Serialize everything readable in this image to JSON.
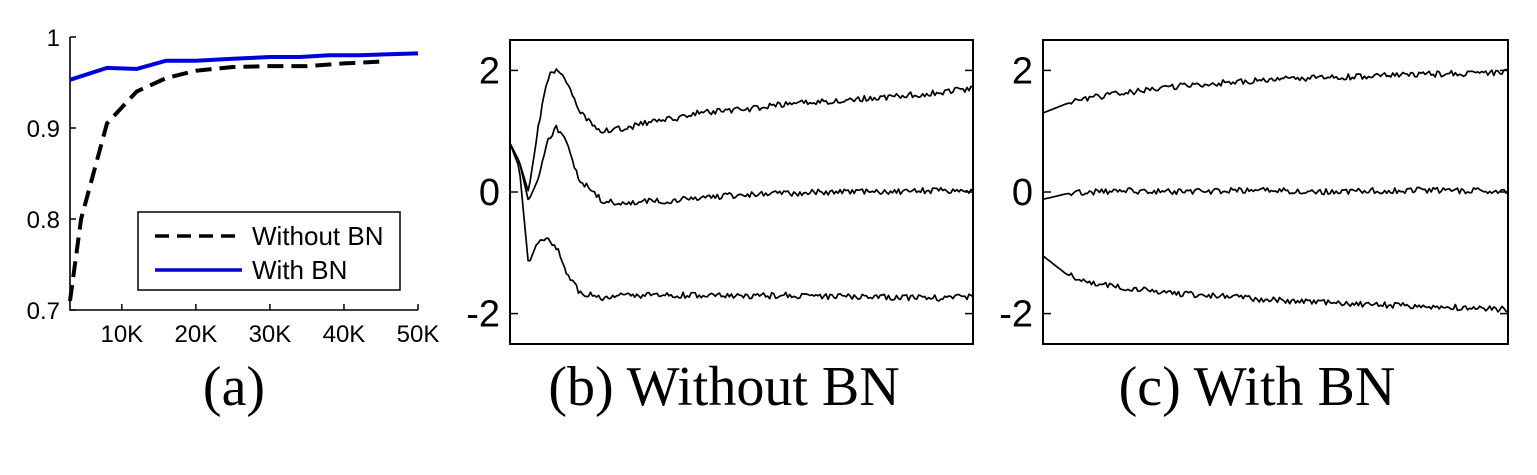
{
  "chart_data": [
    {
      "type": "line",
      "caption": "(a)",
      "xlim": [
        3000,
        50000
      ],
      "ylim": [
        0.7,
        1
      ],
      "x_ticks": [
        10000,
        20000,
        30000,
        40000,
        50000
      ],
      "x_tick_labels": [
        "10K",
        "20K",
        "30K",
        "40K",
        "50K"
      ],
      "y_ticks": [
        0.7,
        0.8,
        0.9,
        1
      ],
      "y_tick_labels": [
        "0.7",
        "0.8",
        "0.9",
        "1"
      ],
      "legend_position": "bottom-right",
      "series": [
        {
          "name": "Without BN",
          "color": "#000000",
          "style": "dashed",
          "x": [
            3000,
            4500,
            8000,
            12000,
            16000,
            20000,
            25000,
            30000,
            35000,
            40000,
            45000
          ],
          "y": [
            0.71,
            0.8,
            0.905,
            0.94,
            0.955,
            0.963,
            0.967,
            0.968,
            0.968,
            0.971,
            0.973
          ]
        },
        {
          "name": "With BN",
          "color": "#0000dd",
          "style": "solid",
          "x": [
            3000,
            8000,
            12000,
            16000,
            20000,
            25000,
            30000,
            34000,
            38000,
            42000,
            46000,
            50000
          ],
          "y": [
            0.953,
            0.966,
            0.965,
            0.974,
            0.974,
            0.976,
            0.978,
            0.978,
            0.98,
            0.98,
            0.981,
            0.982
          ]
        }
      ]
    },
    {
      "type": "line",
      "caption": "(b) Without BN",
      "ylim": [
        -2.5,
        2.5
      ],
      "y_ticks": [
        -2,
        0,
        2
      ],
      "y_tick_labels": [
        "-2",
        "0",
        "2"
      ],
      "x": [
        0,
        0.02,
        0.04,
        0.06,
        0.08,
        0.1,
        0.12,
        0.15,
        0.2,
        0.25,
        0.3,
        0.35,
        0.4,
        0.5,
        0.6,
        0.7,
        0.8,
        0.9,
        1.0
      ],
      "series": [
        {
          "name": "",
          "color": "#000000",
          "y": [
            0.8,
            0.5,
            0.0,
            1.0,
            1.85,
            2.05,
            1.85,
            1.3,
            1.0,
            1.05,
            1.15,
            1.2,
            1.3,
            1.35,
            1.45,
            1.5,
            1.55,
            1.62,
            1.7
          ]
        },
        {
          "name": "",
          "color": "#000000",
          "y": [
            0.8,
            0.5,
            -0.15,
            0.2,
            0.85,
            1.05,
            0.85,
            0.2,
            -0.15,
            -0.2,
            -0.15,
            -0.15,
            -0.1,
            -0.05,
            -0.02,
            0.0,
            0.0,
            0.02,
            0.02
          ]
        },
        {
          "name": "",
          "color": "#000000",
          "y": [
            0.8,
            0.4,
            -1.2,
            -0.8,
            -0.75,
            -0.9,
            -1.3,
            -1.65,
            -1.75,
            -1.7,
            -1.7,
            -1.7,
            -1.7,
            -1.72,
            -1.7,
            -1.72,
            -1.72,
            -1.75,
            -1.72
          ]
        }
      ]
    },
    {
      "type": "line",
      "caption": "(c) With BN",
      "ylim": [
        -2.5,
        2.5
      ],
      "y_ticks": [
        -2,
        0,
        2
      ],
      "y_tick_labels": [
        "-2",
        "0",
        "2"
      ],
      "x": [
        0,
        0.05,
        0.1,
        0.2,
        0.3,
        0.4,
        0.5,
        0.6,
        0.7,
        0.8,
        0.9,
        1.0
      ],
      "series": [
        {
          "name": "",
          "color": "#000000",
          "y": [
            1.3,
            1.45,
            1.55,
            1.65,
            1.75,
            1.8,
            1.85,
            1.88,
            1.9,
            1.93,
            1.95,
            1.97
          ]
        },
        {
          "name": "",
          "color": "#000000",
          "y": [
            -0.12,
            -0.03,
            0.0,
            0.02,
            0.0,
            0.02,
            0.03,
            0.0,
            0.02,
            0.03,
            0.02,
            0.03
          ]
        },
        {
          "name": "",
          "color": "#000000",
          "y": [
            -1.05,
            -1.35,
            -1.5,
            -1.6,
            -1.68,
            -1.72,
            -1.78,
            -1.82,
            -1.85,
            -1.88,
            -1.9,
            -1.93
          ]
        }
      ]
    }
  ]
}
